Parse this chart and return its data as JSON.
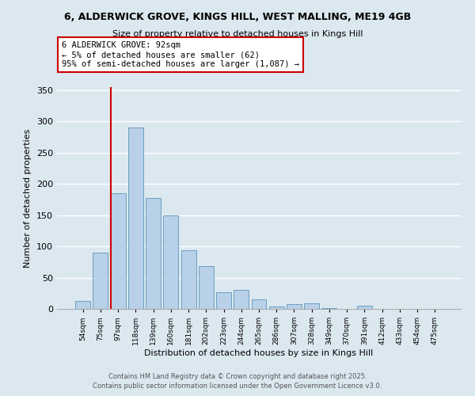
{
  "title1": "6, ALDERWICK GROVE, KINGS HILL, WEST MALLING, ME19 4GB",
  "title2": "Size of property relative to detached houses in Kings Hill",
  "xlabel": "Distribution of detached houses by size in Kings Hill",
  "ylabel": "Number of detached properties",
  "bar_labels": [
    "54sqm",
    "75sqm",
    "97sqm",
    "118sqm",
    "139sqm",
    "160sqm",
    "181sqm",
    "202sqm",
    "223sqm",
    "244sqm",
    "265sqm",
    "286sqm",
    "307sqm",
    "328sqm",
    "349sqm",
    "370sqm",
    "391sqm",
    "412sqm",
    "433sqm",
    "454sqm",
    "475sqm"
  ],
  "bar_values": [
    13,
    90,
    185,
    290,
    177,
    149,
    94,
    69,
    27,
    31,
    15,
    4,
    7,
    9,
    1,
    0,
    5,
    0,
    0,
    0,
    0
  ],
  "bar_color": "#b8d0e8",
  "bar_edge_color": "#6a9fc0",
  "bg_color": "#dce8f0",
  "grid_color": "#ffffff",
  "vline_color": "#cc0000",
  "ylim": [
    0,
    355
  ],
  "vline_index": 2,
  "annotation_line1": "6 ALDERWICK GROVE: 92sqm",
  "annotation_line2": "← 5% of detached houses are smaller (62)",
  "annotation_line3": "95% of semi-detached houses are larger (1,087) →",
  "annotation_box_color": "#ffffff",
  "annotation_box_edge": "#cc0000",
  "footer1": "Contains HM Land Registry data © Crown copyright and database right 2025.",
  "footer2": "Contains public sector information licensed under the Open Government Licence v3.0."
}
